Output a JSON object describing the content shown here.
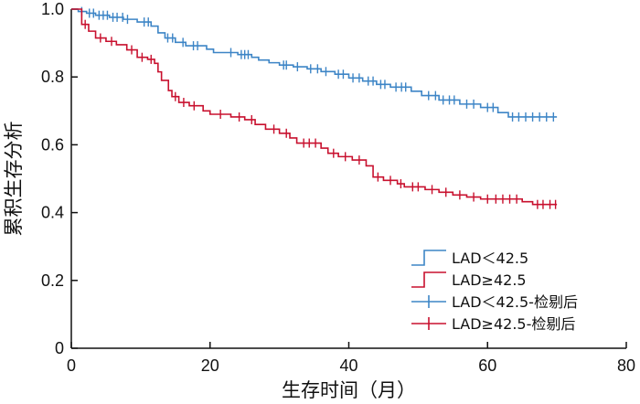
{
  "chart_data": {
    "type": "line",
    "subtype": "kaplan-meier-step",
    "title": "",
    "xlabel": "生存时间（月）",
    "ylabel": "累积生存分析",
    "xlim": [
      0,
      80
    ],
    "ylim": [
      0,
      1.0
    ],
    "xticks": [
      0,
      20,
      40,
      60,
      80
    ],
    "yticks": [
      0,
      0.2,
      0.4,
      0.6,
      0.8,
      1.0
    ],
    "xtick_labels": [
      "0",
      "20",
      "40",
      "60",
      "80"
    ],
    "ytick_labels": [
      "0",
      "0.2",
      "0.4",
      "0.6",
      "0.8",
      "1.0"
    ],
    "grid": false,
    "legend_position": "bottom-right",
    "legend": [
      {
        "label": "LAD＜42.5",
        "kind": "step",
        "color": "#3d85c6"
      },
      {
        "label": "LAD≥42.5",
        "kind": "step",
        "color": "#c8102e"
      },
      {
        "label": "LAD＜42.5-检剔后",
        "kind": "censor",
        "color": "#3d85c6"
      },
      {
        "label": "LAD≥42.5-检剔后",
        "kind": "censor",
        "color": "#c8102e"
      }
    ],
    "series": [
      {
        "name": "LAD＜42.5",
        "color": "#3d85c6",
        "steps": [
          [
            0,
            1.0
          ],
          [
            1.0,
            0.993
          ],
          [
            2.2,
            0.988
          ],
          [
            3.5,
            0.982
          ],
          [
            5.5,
            0.976
          ],
          [
            7.5,
            0.97
          ],
          [
            9.5,
            0.962
          ],
          [
            11.5,
            0.95
          ],
          [
            12.5,
            0.93
          ],
          [
            13.5,
            0.915
          ],
          [
            15,
            0.902
          ],
          [
            16.5,
            0.892
          ],
          [
            19.5,
            0.882
          ],
          [
            20.5,
            0.872
          ],
          [
            24,
            0.866
          ],
          [
            26,
            0.858
          ],
          [
            27,
            0.85
          ],
          [
            28.5,
            0.842
          ],
          [
            30,
            0.835
          ],
          [
            32,
            0.83
          ],
          [
            34,
            0.824
          ],
          [
            36,
            0.816
          ],
          [
            38,
            0.808
          ],
          [
            40,
            0.797
          ],
          [
            42,
            0.788
          ],
          [
            44,
            0.778
          ],
          [
            46,
            0.77
          ],
          [
            49,
            0.758
          ],
          [
            50.5,
            0.745
          ],
          [
            53,
            0.732
          ],
          [
            56,
            0.72
          ],
          [
            59,
            0.71
          ],
          [
            61.5,
            0.695
          ],
          [
            63,
            0.682
          ],
          [
            70,
            0.682
          ]
        ],
        "censors": [
          1.5,
          2.6,
          3.2,
          4.0,
          4.6,
          5.2,
          6.0,
          6.6,
          7.4,
          8.1,
          10.5,
          11.1,
          13.9,
          14.6,
          16.1,
          17.6,
          18.2,
          23.0,
          24.5,
          25.0,
          25.5,
          30.6,
          31.0,
          32.6,
          34.5,
          35.5,
          36.7,
          38.5,
          39.2,
          40.6,
          41.5,
          42.8,
          43.5,
          44.6,
          45.2,
          46.8,
          47.6,
          48.2,
          51.5,
          52.5,
          53.6,
          54.5,
          55.2,
          57.0,
          58.0,
          60.0,
          60.8,
          63.6,
          64.5,
          65.5,
          66.5,
          67.5,
          68.5,
          69.5
        ]
      },
      {
        "name": "LAD≥42.5",
        "color": "#c8102e",
        "steps": [
          [
            0,
            1.0
          ],
          [
            1.5,
            0.955
          ],
          [
            2.5,
            0.935
          ],
          [
            3.5,
            0.915
          ],
          [
            5.0,
            0.905
          ],
          [
            6.5,
            0.895
          ],
          [
            8.0,
            0.88
          ],
          [
            9.5,
            0.858
          ],
          [
            11,
            0.852
          ],
          [
            12,
            0.84
          ],
          [
            12.5,
            0.815
          ],
          [
            13,
            0.79
          ],
          [
            14,
            0.76
          ],
          [
            14.5,
            0.742
          ],
          [
            15.5,
            0.725
          ],
          [
            17,
            0.715
          ],
          [
            19,
            0.7
          ],
          [
            20,
            0.69
          ],
          [
            23,
            0.682
          ],
          [
            25,
            0.674
          ],
          [
            26.5,
            0.66
          ],
          [
            28,
            0.646
          ],
          [
            30,
            0.634
          ],
          [
            31.5,
            0.62
          ],
          [
            32.5,
            0.605
          ],
          [
            36,
            0.59
          ],
          [
            37,
            0.575
          ],
          [
            38.5,
            0.565
          ],
          [
            40.5,
            0.555
          ],
          [
            42.5,
            0.538
          ],
          [
            43.5,
            0.505
          ],
          [
            45,
            0.495
          ],
          [
            47,
            0.485
          ],
          [
            48,
            0.476
          ],
          [
            51,
            0.468
          ],
          [
            53,
            0.46
          ],
          [
            55,
            0.452
          ],
          [
            57,
            0.446
          ],
          [
            59,
            0.44
          ],
          [
            65,
            0.432
          ],
          [
            66.5,
            0.424
          ],
          [
            70,
            0.424
          ]
        ],
        "censors": [
          2.0,
          4.2,
          5.8,
          8.7,
          10.2,
          11.5,
          15.0,
          16.2,
          17.7,
          21.5,
          24.2,
          26.0,
          29.2,
          31.0,
          33.5,
          34.3,
          35.2,
          37.8,
          39.5,
          41.5,
          44.2,
          46.0,
          47.5,
          49.2,
          50.0,
          52.0,
          54.0,
          56.0,
          58.0,
          60.0,
          61.2,
          62.2,
          63.2,
          64.2,
          67.2,
          68.0,
          69.0,
          69.8
        ]
      }
    ]
  }
}
